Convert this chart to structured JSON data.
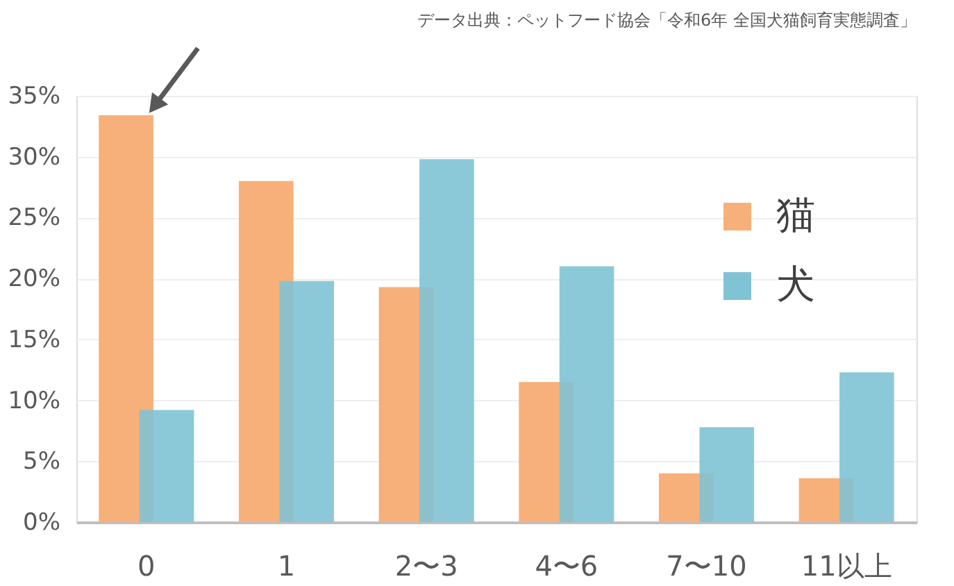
{
  "chart_data": {
    "type": "bar",
    "categories": [
      "0",
      "1",
      "2〜3",
      "4〜6",
      "7〜10",
      "11以上"
    ],
    "series": [
      {
        "name": "猫",
        "color": "#f7b07a",
        "values": [
          33.4,
          28.0,
          19.3,
          11.5,
          4.0,
          3.6
        ]
      },
      {
        "name": "犬",
        "color": "#7fc3d4",
        "values": [
          9.2,
          19.8,
          29.8,
          21.0,
          7.8,
          12.3
        ]
      }
    ],
    "ylim": [
      0,
      35
    ],
    "yticks": [
      {
        "value": 0,
        "label": "0%"
      },
      {
        "value": 5,
        "label": "5%"
      },
      {
        "value": 10,
        "label": "10%"
      },
      {
        "value": 15,
        "label": "15%"
      },
      {
        "value": 20,
        "label": "20%"
      },
      {
        "value": 25,
        "label": "25%"
      },
      {
        "value": 30,
        "label": "30%"
      },
      {
        "value": 35,
        "label": "35%"
      }
    ],
    "grid": "y",
    "legend": "top right",
    "annotations": [
      "データ出典：ペットフード協会「令和6年 全国犬猫飼育実態調査」"
    ]
  }
}
